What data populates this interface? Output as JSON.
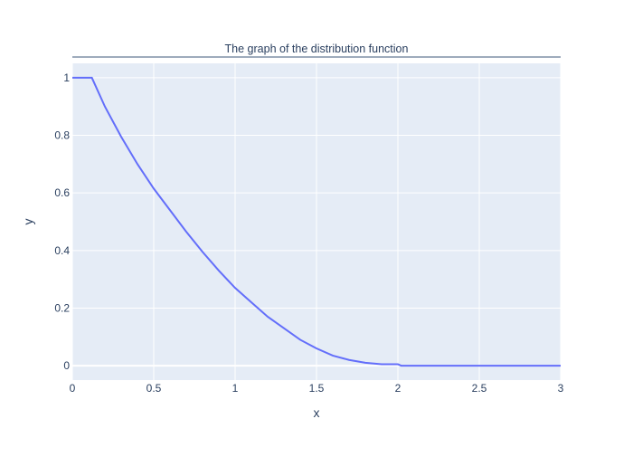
{
  "chart_data": {
    "type": "line",
    "title": "The graph of the distribution function",
    "xlabel": "x",
    "ylabel": "y",
    "xlim": [
      0,
      3
    ],
    "ylim": [
      -0.05,
      1.05
    ],
    "grid": true,
    "x_ticks": [
      "0",
      "0.5",
      "1",
      "1.5",
      "2",
      "2.5",
      "3"
    ],
    "y_ticks": [
      "0",
      "0.2",
      "0.4",
      "0.6",
      "0.8",
      "1"
    ],
    "colors": {
      "line": "#636efa",
      "plot_bg": "#e5ecf6",
      "grid": "#ffffff",
      "title_rule": "#7f8fa6"
    },
    "series": [
      {
        "x": [
          0,
          0.12,
          0.2,
          0.3,
          0.4,
          0.5,
          0.6,
          0.7,
          0.8,
          0.9,
          1.0,
          1.1,
          1.2,
          1.3,
          1.4,
          1.5,
          1.6,
          1.7,
          1.8,
          1.9,
          2.0,
          2.02,
          2.1,
          2.5,
          3.0
        ],
        "y": [
          1.0,
          1.0,
          0.9,
          0.795,
          0.7,
          0.615,
          0.54,
          0.465,
          0.395,
          0.33,
          0.27,
          0.22,
          0.17,
          0.13,
          0.09,
          0.06,
          0.035,
          0.02,
          0.01,
          0.005,
          0.005,
          0.0,
          0.0,
          0.0,
          0.0
        ]
      }
    ]
  }
}
